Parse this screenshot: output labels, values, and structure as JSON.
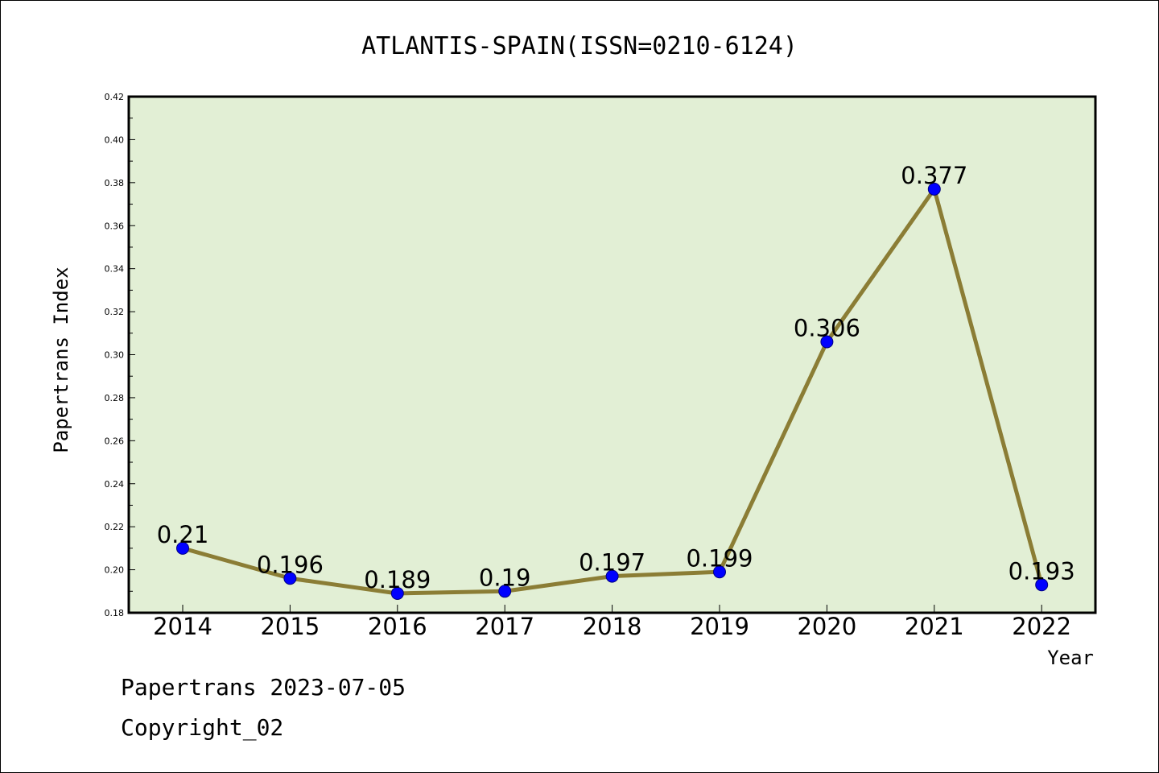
{
  "colors": {
    "plot_background": "#e2efd5",
    "line": "#8b7d35",
    "marker": "#0000ff",
    "marker_edge": "#000080"
  },
  "footer": {
    "date_line": "Papertrans 2023-07-05",
    "copyright": "Copyright_02"
  },
  "chart_data": {
    "type": "line",
    "title": "ATLANTIS-SPAIN(ISSN=0210-6124)",
    "xlabel": "Year",
    "ylabel": "Papertrans Index",
    "categories": [
      "2014",
      "2015",
      "2016",
      "2017",
      "2018",
      "2019",
      "2020",
      "2021",
      "2022"
    ],
    "values": [
      0.21,
      0.196,
      0.189,
      0.19,
      0.197,
      0.199,
      0.306,
      0.377,
      0.193
    ],
    "data_labels": [
      "0.21",
      "0.196",
      "0.189",
      "0.19",
      "0.197",
      "0.199",
      "0.306",
      "0.377",
      "0.193"
    ],
    "ylim": [
      0.18,
      0.42
    ],
    "yticks": [
      "0.18",
      "0.20",
      "0.22",
      "0.24",
      "0.26",
      "0.28",
      "0.30",
      "0.32",
      "0.34",
      "0.36",
      "0.38",
      "0.40",
      "0.42"
    ],
    "grid": false,
    "legend": "none"
  }
}
